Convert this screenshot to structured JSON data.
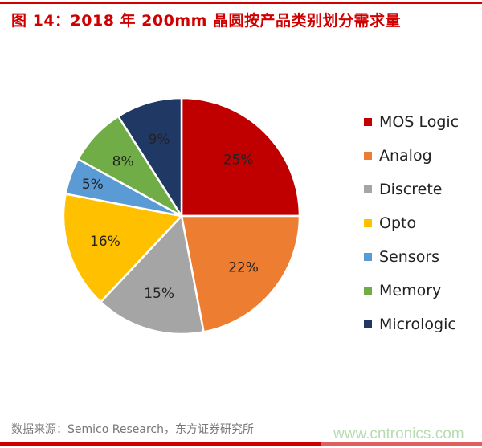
{
  "title": "图 14：2018 年 200mm 晶圆按产品类别划分需求量",
  "source": "数据来源：Semico Research，东方证券研究所",
  "watermark": "www.cntronics.com",
  "chart_data": {
    "type": "pie",
    "title": "图 14：2018 年 200mm 晶圆按产品类别划分需求量",
    "start_angle": "12 o'clock",
    "direction": "clockwise",
    "legend_position": "right",
    "categories": [
      "MOS Logic",
      "Analog",
      "Discrete",
      "Opto",
      "Sensors",
      "Memory",
      "Micrologic"
    ],
    "values": [
      25,
      22,
      15,
      16,
      5,
      8,
      9
    ],
    "labels": [
      "25%",
      "22%",
      "15%",
      "16%",
      "5%",
      "8%",
      "9%"
    ],
    "colors": [
      "#C00000",
      "#ED7D31",
      "#A5A5A5",
      "#FFC000",
      "#5B9BD5",
      "#70AD47",
      "#203864"
    ]
  }
}
